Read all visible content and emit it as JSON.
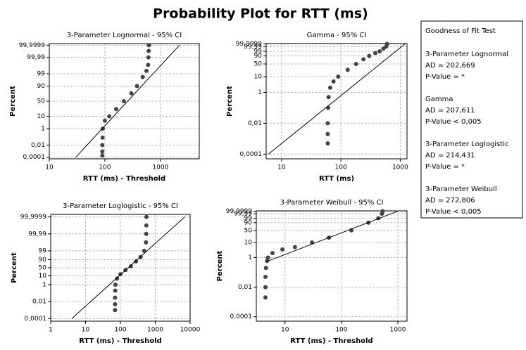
{
  "title": "Probability Plot for RTT (ms)",
  "goodness_of_fit": {
    "title": "Goodness of Fit Test",
    "entries": [
      {
        "name": "3-Parameter Lognormal",
        "ad": "AD = 202,669",
        "p": "P-Value = *"
      },
      {
        "name": "Gamma",
        "ad": "AD = 207,611",
        "p": "P-Value < 0,005"
      },
      {
        "name": "3-Parameter Loglogistic",
        "ad": "AD = 214,431",
        "p": "P-Value = *"
      },
      {
        "name": "3-Parameter Weibull",
        "ad": "AD = 272,806",
        "p": "P-Value < 0,005"
      }
    ]
  },
  "chart_data": [
    {
      "type": "scatter",
      "title": "3-Parameter Lognormal - 95% CI",
      "x_label": "RTT (ms) - Threshold",
      "y_label": "Percent",
      "xlog": true,
      "yscale": "normal",
      "grid": true,
      "xlim": [
        10,
        5000
      ],
      "xticks": [
        10,
        100,
        1000
      ],
      "ylim": [
        5e-05,
        99.99995
      ],
      "yticks": [
        {
          "value": 0.0001,
          "label": "0,0001"
        },
        {
          "value": 0.01,
          "label": "0,01"
        },
        1,
        10,
        50,
        90,
        99,
        {
          "value": 99.99,
          "label": "99,99"
        },
        {
          "value": 99.9999,
          "label": "99,9999"
        }
      ],
      "series": [
        {
          "color": "#444444",
          "x": [
            90,
            90,
            90,
            91,
            92,
            100,
            120,
            160,
            220,
            300,
            380,
            480,
            560,
            600,
            610,
            615,
            620
          ],
          "values": [
            0.0002,
            0.001,
            0.01,
            0.1,
            1,
            5,
            10,
            25,
            50,
            75,
            90,
            98,
            99.5,
            99.9,
            99.99,
            99.999,
            99.9999
          ]
        },
        {
          "color": "#000000",
          "style": "line",
          "x": [
            30,
            2200
          ],
          "values": [
            0.0001,
            99.9999
          ]
        }
      ]
    },
    {
      "type": "scatter",
      "title": "Gamma - 95% CI",
      "x_label": "RTT (ms)",
      "y_label": "Percent",
      "xlog": true,
      "yscale": "weibull",
      "grid": true,
      "xlim": [
        5.5,
        1300
      ],
      "xticks": [
        10,
        100,
        1000
      ],
      "ylim": [
        5e-05,
        99.99995
      ],
      "yticks": [
        {
          "value": 0.0001,
          "label": "0,0001"
        },
        {
          "value": 0.01,
          "label": "0,01"
        },
        1,
        10,
        50,
        90,
        99,
        {
          "value": 99.99,
          "label": "99,99"
        },
        {
          "value": 99.9999,
          "label": "99,9999"
        }
      ],
      "series": [
        {
          "color": "#444444",
          "x": [
            60,
            60,
            60,
            61,
            62,
            66,
            75,
            90,
            130,
            180,
            240,
            300,
            380,
            450,
            520,
            580,
            600
          ],
          "values": [
            0.0005,
            0.002,
            0.01,
            0.1,
            0.5,
            2,
            5,
            10,
            25,
            50,
            75,
            90,
            97,
            99,
            99.9,
            99.99,
            99.9999
          ]
        },
        {
          "color": "#000000",
          "style": "line",
          "x": [
            6,
            1200
          ],
          "values": [
            0.0001,
            99.9999
          ]
        }
      ]
    },
    {
      "type": "scatter",
      "title": "3-Parameter Loglogistic - 95% CI",
      "x_label": "RTT (ms) - Threshold",
      "y_label": "Percent",
      "xlog": true,
      "yscale": "logit",
      "grid": true,
      "xlim": [
        1,
        10000
      ],
      "xticks": [
        1,
        10,
        100,
        1000,
        10000
      ],
      "ylim": [
        5e-05,
        99.99995
      ],
      "yticks": [
        {
          "value": 0.0001,
          "label": "0,0001"
        },
        {
          "value": 0.01,
          "label": "0,01"
        },
        1,
        10,
        50,
        90,
        99,
        {
          "value": 99.99,
          "label": "99,99"
        },
        {
          "value": 99.9999,
          "label": "99,9999"
        }
      ],
      "series": [
        {
          "color": "#444444",
          "x": [
            70,
            70,
            70,
            71,
            72,
            80,
            100,
            140,
            200,
            280,
            380,
            480,
            540,
            550,
            555,
            560
          ],
          "values": [
            0.001,
            0.005,
            0.03,
            0.2,
            1,
            5,
            15,
            35,
            60,
            85,
            95,
            99,
            99.9,
            99.99,
            99.999,
            99.9999
          ]
        },
        {
          "color": "#000000",
          "style": "line",
          "x": [
            4,
            7000
          ],
          "values": [
            0.0001,
            99.9999
          ]
        }
      ]
    },
    {
      "type": "scatter",
      "title": "3-Parameter Weibull - 95% CI",
      "x_label": "RTT (ms) - Threshold",
      "y_label": "Percent",
      "xlog": true,
      "yscale": "weibull",
      "grid": true,
      "xlim": [
        3.1,
        1450
      ],
      "xticks": [
        10,
        100,
        1000
      ],
      "ylim": [
        5e-05,
        99.99995
      ],
      "yticks": [
        {
          "value": 0.0001,
          "label": "0,0001"
        },
        {
          "value": 0.01,
          "label": "0,01"
        },
        1,
        10,
        50,
        90,
        99,
        {
          "value": 99.99,
          "label": "99,99"
        },
        {
          "value": 99.9999,
          "label": "99,9999"
        }
      ],
      "series": [
        {
          "color": "#444444",
          "x": [
            4.5,
            4.5,
            4.5,
            4.6,
            4.8,
            5,
            6,
            9,
            15,
            30,
            60,
            150,
            300,
            450,
            520,
            540
          ],
          "values": [
            0.002,
            0.01,
            0.05,
            0.2,
            0.6,
            1,
            2,
            3.5,
            5,
            10,
            20,
            50,
            90,
            99,
            99.99,
            99.9999
          ]
        },
        {
          "color": "#000000",
          "style": "line",
          "x": [
            4.5,
            1000
          ],
          "values": [
            0.5,
            99.9999
          ]
        }
      ]
    }
  ]
}
